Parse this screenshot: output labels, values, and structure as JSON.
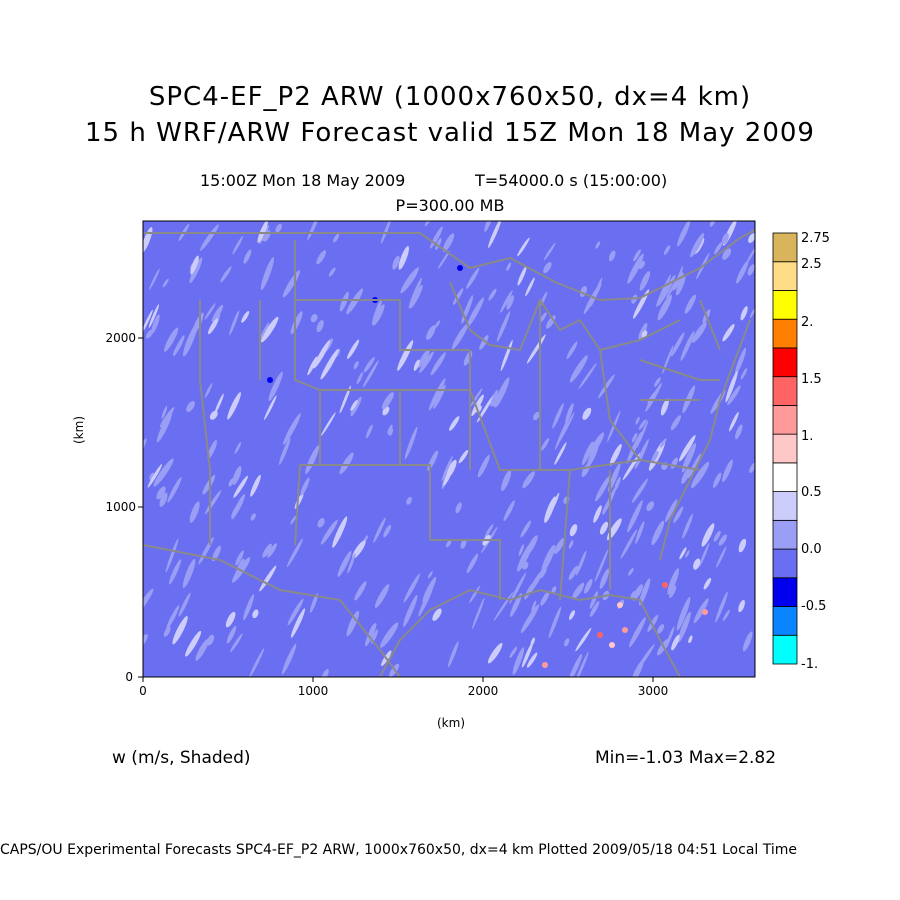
{
  "title": {
    "line1": "SPC4-EF_P2 ARW (1000x760x50, dx=4 km)",
    "line2": "15 h WRF/ARW Forecast valid 15Z Mon 18 May 2009"
  },
  "subtitle": {
    "time": "15:00Z Mon 18 May 2009",
    "model_time": "T=54000.0 s (15:00:00)",
    "pressure_level": "P=300.00 MB"
  },
  "axes": {
    "xlabel": "(km)",
    "ylabel": "(km)",
    "xticks": [
      "0",
      "1000",
      "2000",
      "3000"
    ],
    "yticks": [
      "0",
      "1000",
      "2000"
    ]
  },
  "field_label": "w (m/s, Shaded)",
  "stats": "Min=-1.03 Max=2.82",
  "footer": "CAPS/OU Experimental Forecasts  SPC4-EF_P2 ARW, 1000x760x50, dx=4 km  Plotted 2009/05/18 04:51 Local Time",
  "colorbar": {
    "labels": [
      "2.75",
      "2.5",
      "2.",
      "1.5",
      "1.",
      "0.5",
      "0.0",
      "-0.5",
      "-1."
    ],
    "colors": [
      "#00ffff",
      "#0a84ff",
      "#0000ee",
      "#6a6ef0",
      "#9a9ef5",
      "#cccdfb",
      "#ffffff",
      "#ffc8c8",
      "#ff9a9a",
      "#ff6464",
      "#ff0000",
      "#ff7f00",
      "#ffff00",
      "#ffdd88",
      "#d8b45c"
    ]
  },
  "chart_data": {
    "type": "heatmap",
    "title": "SPC4-EF_P2 ARW (1000x760x50, dx=4 km)",
    "xlabel": "(km)",
    "ylabel": "(km)",
    "xlim": [
      0,
      3600
    ],
    "ylim": [
      0,
      2700
    ],
    "variable": "w (m/s, Shaded)",
    "min": -1.03,
    "max": 2.82
  }
}
